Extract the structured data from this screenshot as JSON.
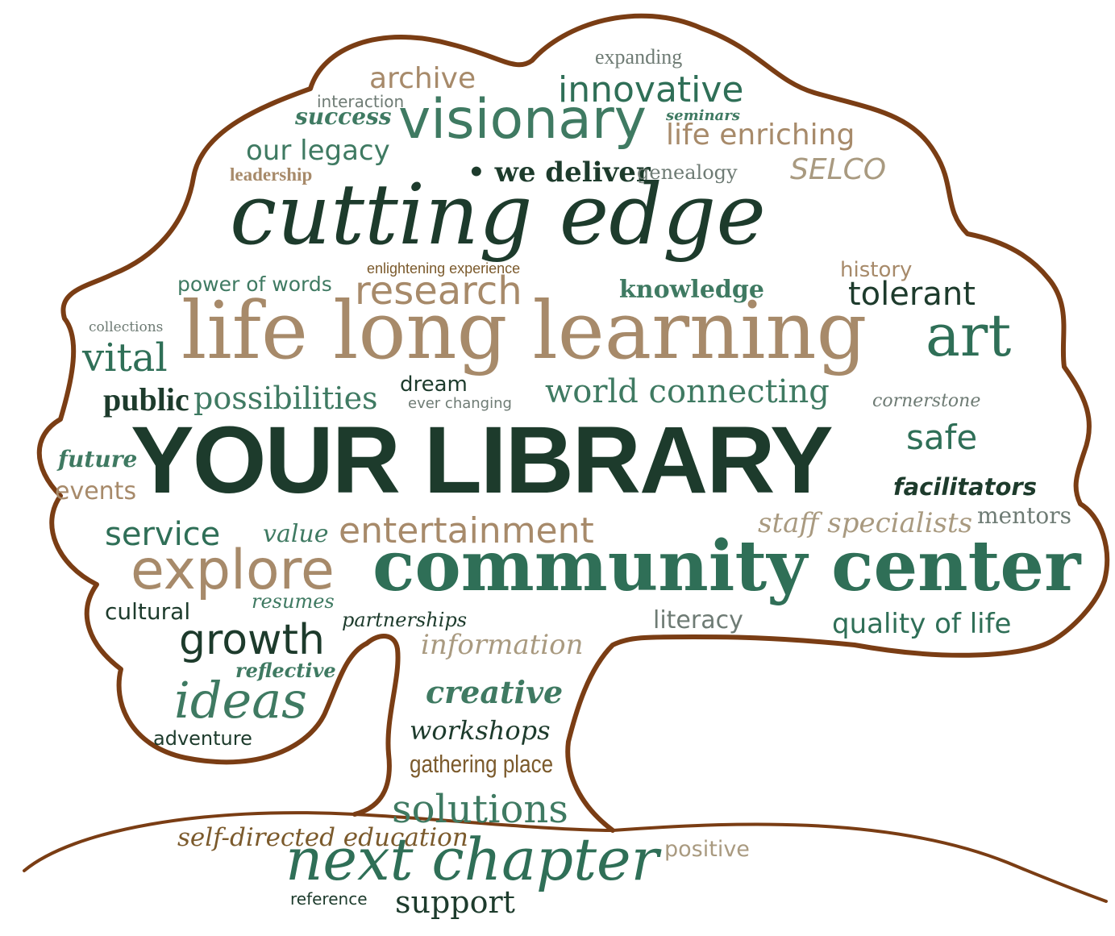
{
  "palette": {
    "outline": "#7a3d14",
    "dark_green": "#1d3b2c",
    "teal": "#2f6f57",
    "mid_green": "#3f7a62",
    "tan": "#a78a6a",
    "light_tan": "#a99a80",
    "gray": "#6e7b74",
    "olive_brown": "#7b5a2c"
  },
  "words": {
    "expanding": "expanding",
    "archive": "archive",
    "innovative": "innovative",
    "interaction": "interaction",
    "success": "success",
    "visionary": "visionary",
    "seminars": "seminars",
    "life_enriching": "life enriching",
    "our_legacy": "our legacy",
    "leadership": "leadership",
    "we_deliver": "• we deliver",
    "genealogy": "genealogy",
    "selco": "SELCO",
    "cutting_edge": "cutting edge",
    "enlightening_experience": "enlightening experience",
    "power_of_words": "power of words",
    "research": "research",
    "knowledge": "knowledge",
    "history": "history",
    "tolerant": "tolerant",
    "collections": "collections",
    "vital": "vital",
    "life_long_learning": "life long learning",
    "art": "art",
    "public": "public",
    "possibilities": "possibilities",
    "dream": "dream",
    "ever_changing": "ever changing",
    "world_connecting": "world connecting",
    "cornerstone": "cornerstone",
    "your_library": "YOUR LIBRARY",
    "safe": "safe",
    "future": "future",
    "events": "events",
    "facilitators": "facilitators",
    "service": "service",
    "value": "value",
    "entertainment": "entertainment",
    "staff_specialists": "staff specialists",
    "mentors": "mentors",
    "explore": "explore",
    "community_center": "community center",
    "resumes": "resumes",
    "cultural": "cultural",
    "partnerships": "partnerships",
    "literacy": "literacy",
    "quality_of_life": "quality of life",
    "growth": "growth",
    "information": "information",
    "reflective": "reflective",
    "ideas": "ideas",
    "creative": "creative",
    "adventure": "adventure",
    "workshops": "workshops",
    "gathering_place": "gathering place",
    "solutions": "solutions",
    "self_directed_education": "self-directed education",
    "next_chapter": "next chapter",
    "positive": "positive",
    "reference": "reference",
    "support": "support"
  }
}
